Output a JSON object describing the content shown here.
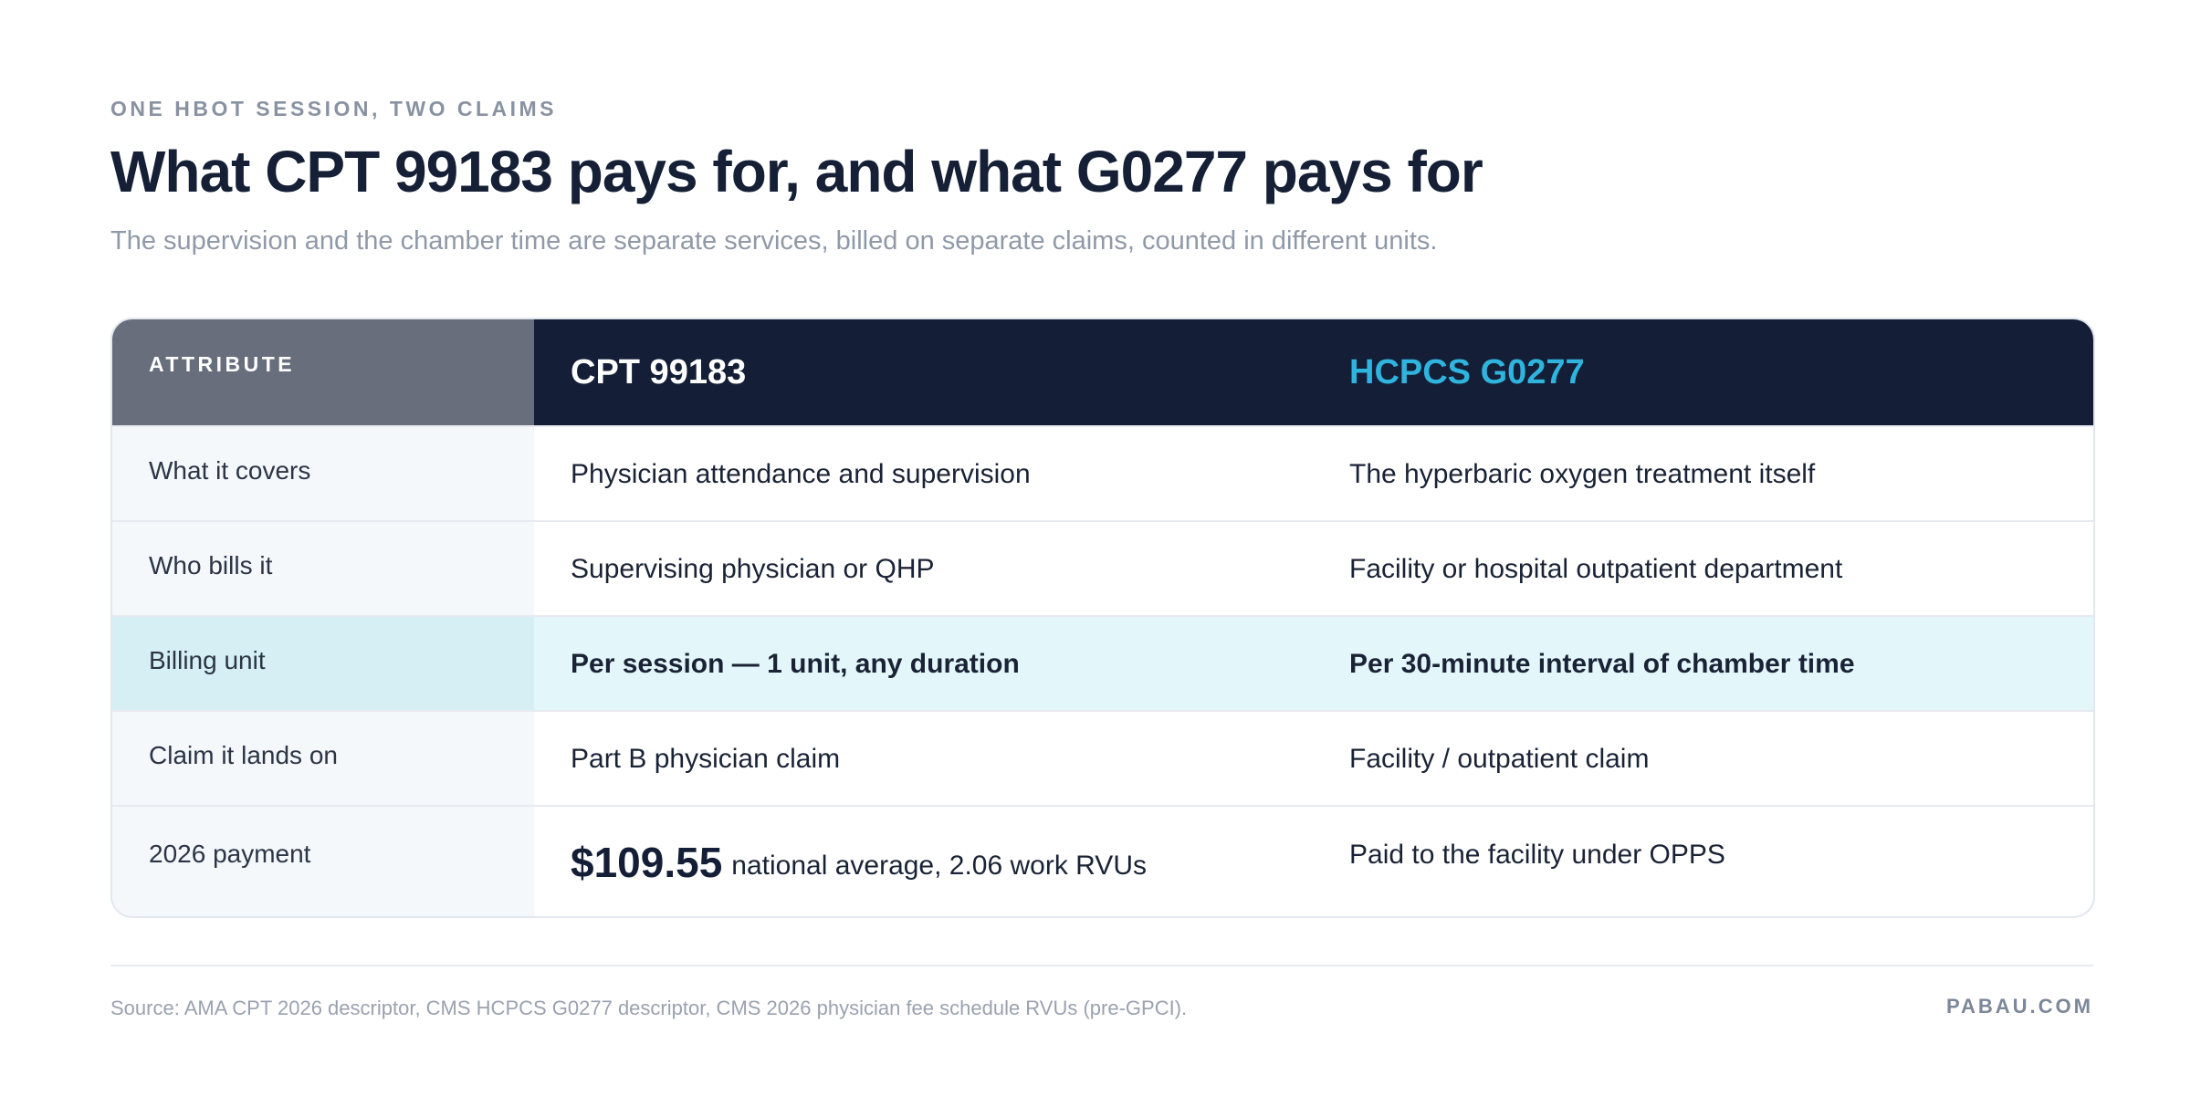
{
  "eyebrow": "ONE HBOT SESSION, TWO CLAIMS",
  "title": "What CPT 99183 pays for, and what G0277 pays for",
  "subtitle": "The supervision and the chamber time are separate services, billed on separate claims, counted in different units.",
  "table": {
    "headers": [
      "ATTRIBUTE",
      "CPT 99183",
      "HCPCS G0277"
    ],
    "rows": [
      [
        "What it covers",
        "Physician attendance and supervision",
        "The hyperbaric oxygen treatment itself"
      ],
      [
        "Who bills it",
        "Supervising physician or QHP",
        "Facility or hospital outpatient department"
      ],
      [
        "Billing unit",
        "Per session — 1 unit, any duration",
        "Per 30-minute interval of chamber time"
      ],
      [
        "Claim it lands on",
        "Part B physician claim",
        "Facility / outpatient claim"
      ]
    ],
    "payment_row": {
      "label": "2026 payment",
      "amount": "$109.55",
      "amount_note": "national average, 2.06 work RVUs",
      "g0277": "Paid to the facility under OPPS"
    },
    "colors": {
      "header_attribute_bg": "#686e7c",
      "header_bg": "#141e37",
      "g0277_accent": "#2fb4de",
      "highlight_row_bg": "#e3f6fa"
    }
  },
  "footer": {
    "source": "Source: AMA CPT 2026 descriptor, CMS HCPCS G0277 descriptor, CMS 2026 physician fee schedule RVUs (pre-GPCI).",
    "brand": "PABAU.COM"
  }
}
